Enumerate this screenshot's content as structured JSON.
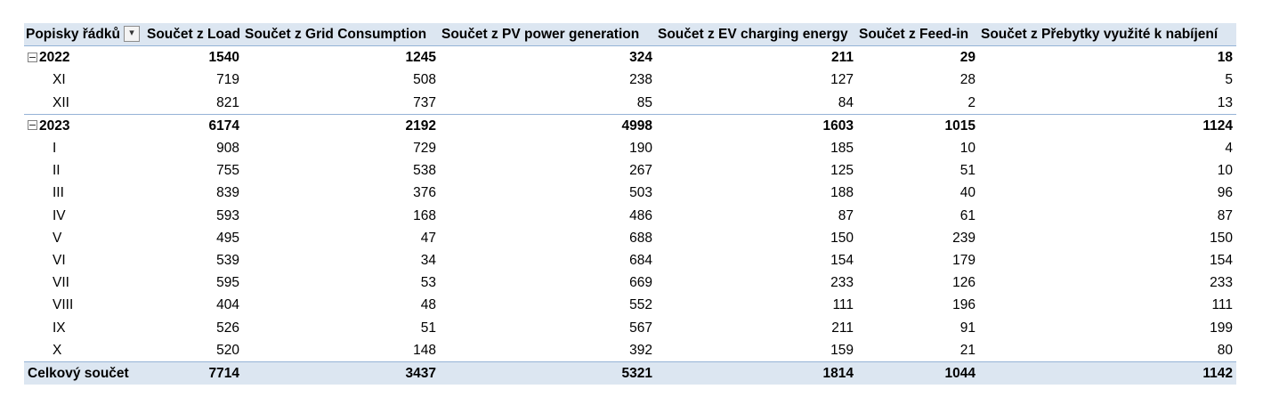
{
  "header": {
    "row_labels": "Popisky řádků",
    "filter_icon": "filter-icon",
    "columns": [
      "Součet z Load",
      "Součet z Grid Consumption",
      "Součet z PV power generation",
      "Součet z EV charging energy",
      "Součet z Feed-in",
      "Součet z Přebytky využité k nabíjení"
    ]
  },
  "groups": [
    {
      "label": "2022",
      "values": [
        "1540",
        "1245",
        "324",
        "211",
        "29",
        "18"
      ],
      "rows": [
        {
          "label": "XI",
          "values": [
            "719",
            "508",
            "238",
            "127",
            "28",
            "5"
          ]
        },
        {
          "label": "XII",
          "values": [
            "821",
            "737",
            "85",
            "84",
            "2",
            "13"
          ]
        }
      ]
    },
    {
      "label": "2023",
      "values": [
        "6174",
        "2192",
        "4998",
        "1603",
        "1015",
        "1124"
      ],
      "rows": [
        {
          "label": "I",
          "values": [
            "908",
            "729",
            "190",
            "185",
            "10",
            "4"
          ]
        },
        {
          "label": "II",
          "values": [
            "755",
            "538",
            "267",
            "125",
            "51",
            "10"
          ]
        },
        {
          "label": "III",
          "values": [
            "839",
            "376",
            "503",
            "188",
            "40",
            "96"
          ]
        },
        {
          "label": "IV",
          "values": [
            "593",
            "168",
            "486",
            "87",
            "61",
            "87"
          ]
        },
        {
          "label": "V",
          "values": [
            "495",
            "47",
            "688",
            "150",
            "239",
            "150"
          ]
        },
        {
          "label": "VI",
          "values": [
            "539",
            "34",
            "684",
            "154",
            "179",
            "154"
          ]
        },
        {
          "label": "VII",
          "values": [
            "595",
            "53",
            "669",
            "233",
            "126",
            "233"
          ]
        },
        {
          "label": "VIII",
          "values": [
            "404",
            "48",
            "552",
            "111",
            "196",
            "111"
          ]
        },
        {
          "label": "IX",
          "values": [
            "526",
            "51",
            "567",
            "211",
            "91",
            "199"
          ]
        },
        {
          "label": "X",
          "values": [
            "520",
            "148",
            "392",
            "159",
            "21",
            "80"
          ]
        }
      ]
    }
  ],
  "total": {
    "label": "Celkový součet",
    "values": [
      "7714",
      "3437",
      "5321",
      "1814",
      "1044",
      "1142"
    ]
  },
  "colors": {
    "header_bg": "#dce6f1",
    "border": "#95b3d7"
  }
}
